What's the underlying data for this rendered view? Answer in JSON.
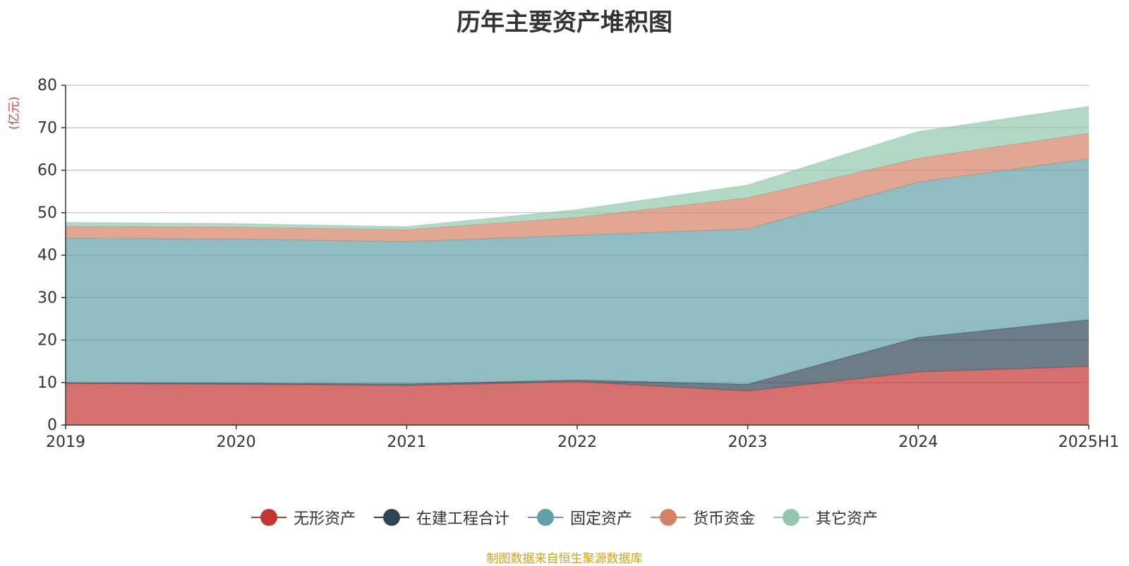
{
  "chart_data": {
    "type": "area",
    "stacked": true,
    "title": "历年主要资产堆积图",
    "ylabel": "(亿元)",
    "categories": [
      "2019",
      "2020",
      "2021",
      "2022",
      "2023",
      "2024",
      "2025H1"
    ],
    "ylim": [
      0,
      80
    ],
    "yticks": [
      0,
      10,
      20,
      30,
      40,
      50,
      60,
      70,
      80
    ],
    "grid": true,
    "legend_position": "bottom",
    "series": [
      {
        "name": "无形资产",
        "color": "#c23531",
        "values": [
          9.8,
          9.6,
          9.3,
          10.2,
          8.0,
          12.5,
          13.8
        ]
      },
      {
        "name": "在建工程合计",
        "color": "#2f4554",
        "values": [
          0.2,
          0.3,
          0.4,
          0.4,
          1.6,
          8.1,
          11.0
        ]
      },
      {
        "name": "固定资产",
        "color": "#61a0a8",
        "values": [
          34.0,
          33.9,
          33.5,
          34.1,
          36.6,
          36.6,
          37.9
        ]
      },
      {
        "name": "货币资金",
        "color": "#d48265",
        "values": [
          2.8,
          2.8,
          2.8,
          4.2,
          7.3,
          5.6,
          6.0
        ]
      },
      {
        "name": "其它资产",
        "color": "#91c7ae",
        "values": [
          0.9,
          0.8,
          0.7,
          1.8,
          3.0,
          6.3,
          6.3
        ]
      }
    ]
  },
  "source_note": "制图数据来自恒生聚源数据库"
}
